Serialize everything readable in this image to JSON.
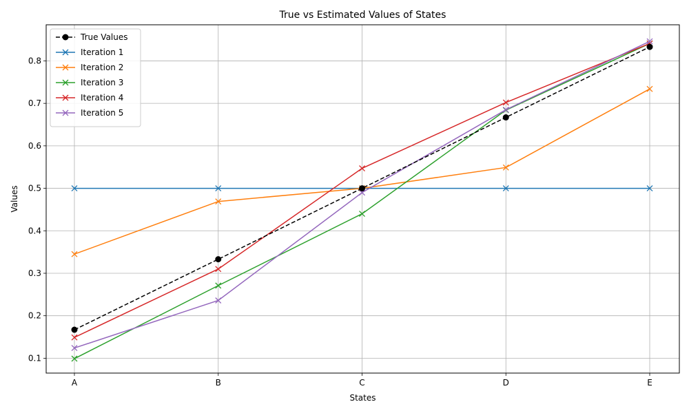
{
  "chart_data": {
    "type": "line",
    "title": "True vs Estimated Values of States",
    "xlabel": "States",
    "ylabel": "Values",
    "categories": [
      "A",
      "B",
      "C",
      "D",
      "E"
    ],
    "ylim": [
      0.065,
      0.885
    ],
    "yticks": [
      "0.1",
      "0.2",
      "0.3",
      "0.4",
      "0.5",
      "0.6",
      "0.7",
      "0.8"
    ],
    "grid": true,
    "legend_position": "upper-left",
    "series": [
      {
        "name": "True Values",
        "values": [
          0.167,
          0.333,
          0.5,
          0.667,
          0.833
        ],
        "color": "#000000",
        "dashed": true,
        "marker": "circle"
      },
      {
        "name": "Iteration 1",
        "values": [
          0.5,
          0.5,
          0.5,
          0.5,
          0.5
        ],
        "color": "#1f77b4",
        "dashed": false,
        "marker": "x"
      },
      {
        "name": "Iteration 2",
        "values": [
          0.345,
          0.469,
          0.5,
          0.549,
          0.734
        ],
        "color": "#ff7f0e",
        "dashed": false,
        "marker": "x"
      },
      {
        "name": "Iteration 3",
        "values": [
          0.099,
          0.271,
          0.44,
          0.684,
          0.841
        ],
        "color": "#2ca02c",
        "dashed": false,
        "marker": "x"
      },
      {
        "name": "Iteration 4",
        "values": [
          0.149,
          0.31,
          0.547,
          0.702,
          0.841
        ],
        "color": "#d62728",
        "dashed": false,
        "marker": "x"
      },
      {
        "name": "Iteration 5",
        "values": [
          0.124,
          0.236,
          0.49,
          0.685,
          0.846
        ],
        "color": "#9467bd",
        "dashed": false,
        "marker": "x"
      }
    ]
  }
}
